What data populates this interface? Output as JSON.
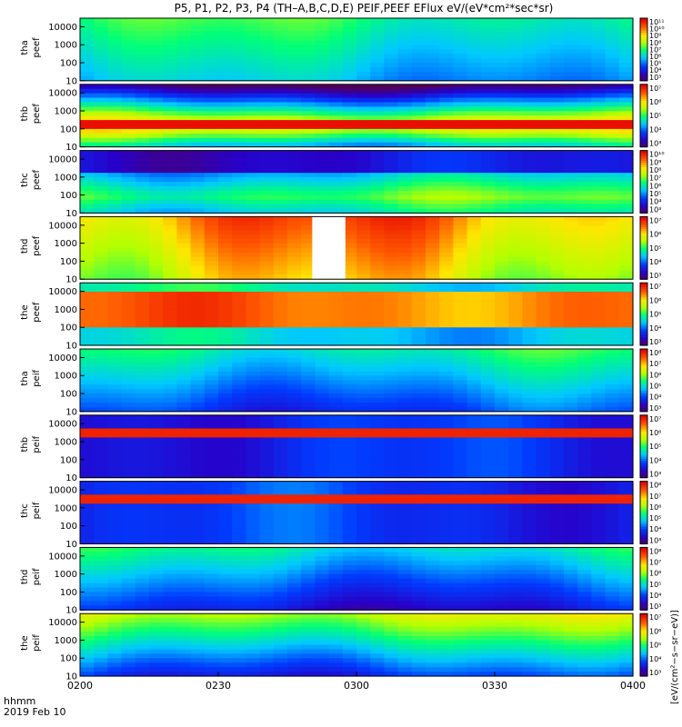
{
  "title": "P5, P1, P2, P3, P4 (TH–A,B,C,D,E) PEIF,PEEF EFlux eV/(eV*cm²*sec*sr)",
  "footer": {
    "time_label": "hhmm",
    "date_label": "2019 Feb 10"
  },
  "colorbar_label": "[eV/(cm²−s−sr−eV)]",
  "x_axis": {
    "tick_labels": [
      "0200",
      "0230",
      "0300",
      "0330",
      "0400"
    ]
  },
  "colormap": "rainbow (purple-blue-cyan-green-yellow-red)",
  "chart_data": {
    "type": "heatmap",
    "xlim": [
      "02:00",
      "04:00"
    ],
    "ylim": [
      10,
      30000
    ],
    "y_scale": "log",
    "y_tick_labels": [
      "10000",
      "1000",
      "100",
      "10"
    ],
    "panels": [
      {
        "label": "tha peef",
        "y1": "tha",
        "y2": "peef",
        "cbar_ticks": [
          "10¹¹",
          "10¹⁰",
          "10⁹",
          "10⁸",
          "10⁷",
          "10⁶",
          "10⁵",
          "10⁴",
          "10³"
        ]
      },
      {
        "label": "thb peef",
        "y1": "thb",
        "y2": "peef",
        "cbar_ticks": [
          "10⁷",
          "10⁶",
          "10⁵",
          "10⁴",
          "10³"
        ]
      },
      {
        "label": "thc peef",
        "y1": "thc",
        "y2": "peef",
        "cbar_ticks": [
          "10¹⁰",
          "10⁹",
          "10⁸",
          "10⁷",
          "10⁶",
          "10⁵",
          "10⁴",
          "10³"
        ]
      },
      {
        "label": "thd peef",
        "y1": "thd",
        "y2": "peef",
        "cbar_ticks": [
          "10⁷",
          "10⁶",
          "10⁵",
          "10⁴",
          "10³"
        ]
      },
      {
        "label": "the peef",
        "y1": "the",
        "y2": "peef",
        "cbar_ticks": [
          "10⁷",
          "10⁶",
          "10⁵",
          "10⁴",
          "10³"
        ]
      },
      {
        "label": "tha peif",
        "y1": "tha",
        "y2": "peif",
        "cbar_ticks": [
          "10⁸",
          "10⁷",
          "10⁶",
          "10⁵",
          "10⁴",
          "10³"
        ]
      },
      {
        "label": "thb peif",
        "y1": "thb",
        "y2": "peif",
        "cbar_ticks": [
          "10⁷",
          "10⁶",
          "10⁵",
          "10⁴",
          "10³"
        ]
      },
      {
        "label": "thc peif",
        "y1": "thc",
        "y2": "peif",
        "cbar_ticks": [
          "10⁸",
          "10⁷",
          "10⁶",
          "10⁵",
          "10⁴",
          "10³"
        ]
      },
      {
        "label": "thd peif",
        "y1": "thd",
        "y2": "peif",
        "cbar_ticks": [
          "10⁸",
          "10⁷",
          "10⁶",
          "10⁵",
          "10⁴",
          "10³"
        ]
      },
      {
        "label": "the peif",
        "y1": "the",
        "y2": "peif",
        "cbar_ticks": [
          "10⁷",
          "10⁶",
          "10⁵",
          "10⁴",
          "10³"
        ]
      }
    ]
  }
}
